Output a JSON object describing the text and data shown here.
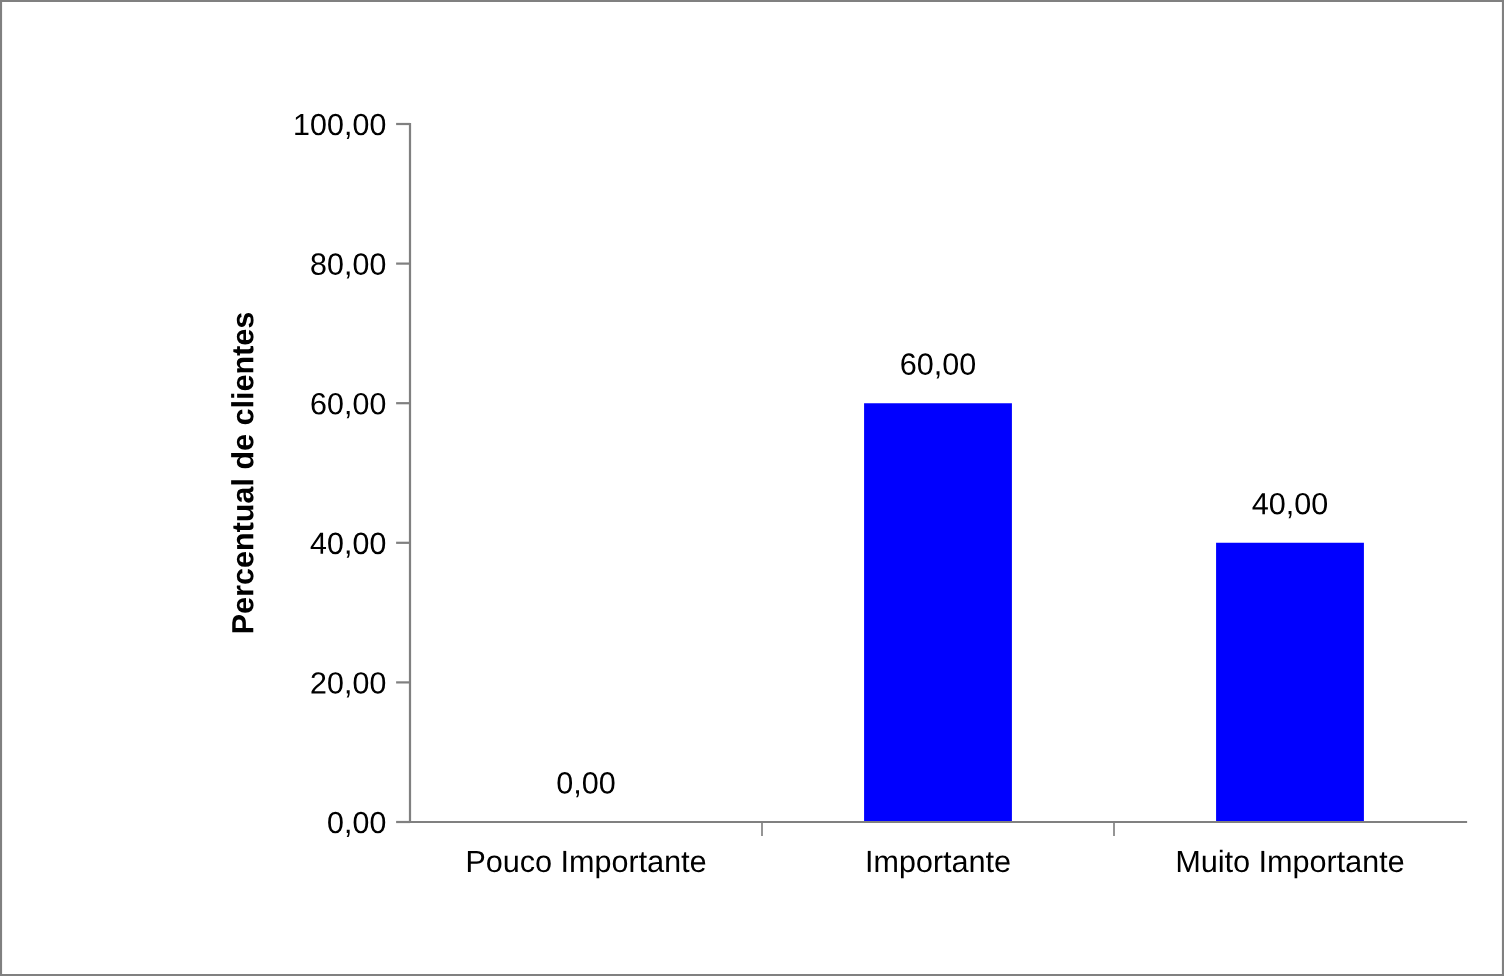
{
  "chart_data": {
    "type": "bar",
    "ylabel": "Percentual de clientes",
    "categories": [
      "Pouco Importante",
      "Importante",
      "Muito Importante"
    ],
    "values": [
      0,
      60,
      40
    ],
    "color": "#0000ff",
    "value_labels": [
      "0,00",
      "60,00",
      "40,00"
    ],
    "ylim": [
      0,
      100
    ],
    "yticks": [
      {
        "value": 0,
        "label": "0,00"
      },
      {
        "value": 20,
        "label": "20,00"
      },
      {
        "value": 40,
        "label": "40,00"
      },
      {
        "value": 60,
        "label": "60,00"
      },
      {
        "value": 80,
        "label": "80,00"
      },
      {
        "value": 100,
        "label": "100,00"
      }
    ],
    "grid": false
  }
}
